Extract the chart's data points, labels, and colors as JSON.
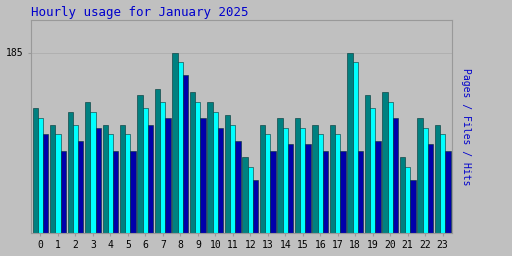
{
  "title": "Hourly usage for January 2025",
  "hours": [
    0,
    1,
    2,
    3,
    4,
    5,
    6,
    7,
    8,
    9,
    10,
    11,
    12,
    13,
    14,
    15,
    16,
    17,
    18,
    19,
    20,
    21,
    22,
    23
  ],
  "hits": [
    168,
    163,
    167,
    170,
    163,
    163,
    172,
    174,
    185,
    173,
    170,
    166,
    153,
    163,
    165,
    165,
    163,
    163,
    185,
    172,
    173,
    153,
    165,
    163
  ],
  "pages": [
    165,
    160,
    163,
    167,
    160,
    160,
    168,
    170,
    182,
    170,
    167,
    163,
    150,
    160,
    162,
    162,
    160,
    160,
    182,
    168,
    170,
    150,
    162,
    160
  ],
  "files": [
    160,
    155,
    158,
    162,
    155,
    155,
    163,
    165,
    178,
    165,
    162,
    158,
    146,
    155,
    157,
    157,
    155,
    155,
    155,
    158,
    165,
    146,
    157,
    155
  ],
  "color_hits": "#008080",
  "color_pages": "#00ffff",
  "color_files": "#0000aa",
  "ylabel": "Pages / Files / Hits",
  "background_color": "#c0c0c0",
  "plot_bg": "#c0c0c0",
  "ylim_min": 130,
  "ylim_max": 195,
  "ytick_val": 185,
  "bar_width": 0.3,
  "title_color": "#0000cc",
  "ylabel_color": "#0000cc",
  "edge_color": "#003333",
  "title_fontsize": 9,
  "ylabel_fontsize": 7,
  "tick_fontsize": 7
}
